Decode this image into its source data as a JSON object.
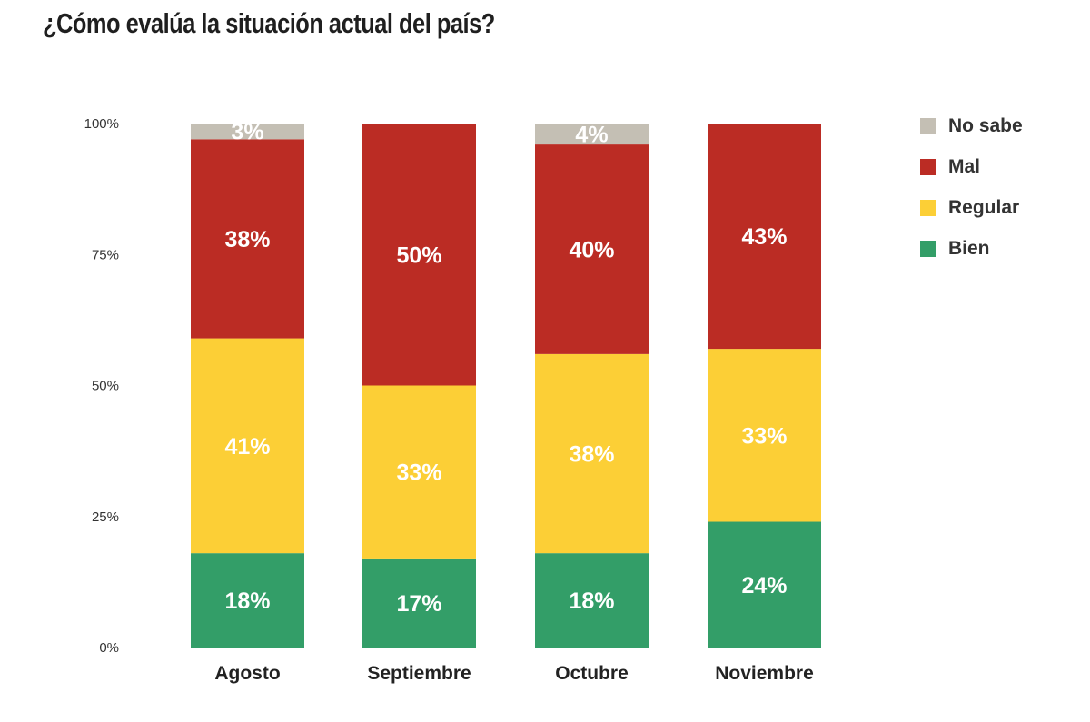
{
  "title": "¿Cómo evalúa la situación actual del país?",
  "chart_data": {
    "type": "bar",
    "stacked": true,
    "title": "¿Cómo evalúa la situación actual del país?",
    "xlabel": "",
    "ylabel": "",
    "ylim": [
      0,
      100
    ],
    "yticks": [
      0,
      25,
      50,
      75,
      100
    ],
    "ytick_labels": [
      "0%",
      "25%",
      "50%",
      "75%",
      "100%"
    ],
    "categories": [
      "Agosto",
      "Septiembre",
      "Octubre",
      "Noviembre"
    ],
    "series": [
      {
        "name": "Bien",
        "color": "#339e68",
        "values": [
          18,
          17,
          18,
          24
        ]
      },
      {
        "name": "Regular",
        "color": "#fccf36",
        "values": [
          41,
          33,
          38,
          33
        ]
      },
      {
        "name": "Mal",
        "color": "#bb2c24",
        "values": [
          38,
          50,
          40,
          43
        ]
      },
      {
        "name": "No sabe",
        "color": "#c4bfb4",
        "values": [
          3,
          0,
          4,
          0
        ]
      }
    ],
    "legend": {
      "placement": "right",
      "order": [
        "No sabe",
        "Mal",
        "Regular",
        "Bien"
      ]
    },
    "grid": false
  }
}
